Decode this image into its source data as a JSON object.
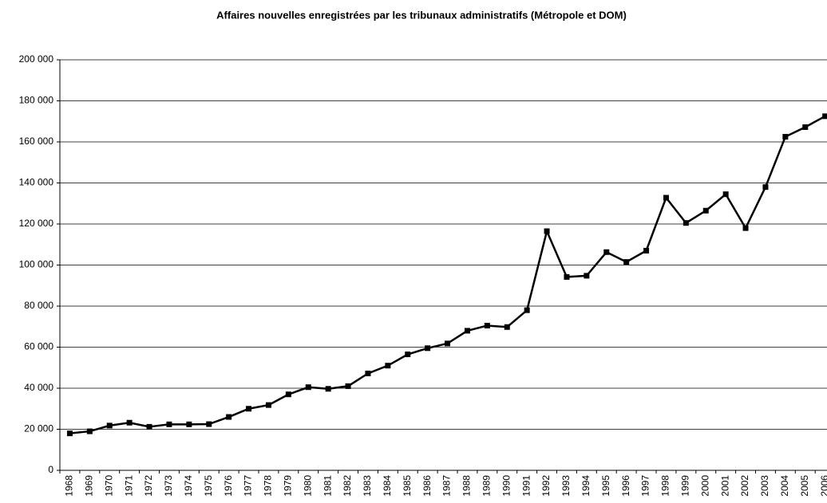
{
  "chart_data": {
    "type": "line",
    "title": "Affaires nouvelles enregistrées par les tribunaux administratifs (Métropole et DOM)",
    "categories": [
      "1968",
      "1969",
      "1970",
      "1971",
      "1972",
      "1973",
      "1974",
      "1975",
      "1976",
      "1977",
      "1978",
      "1979",
      "1980",
      "1981",
      "1982",
      "1983",
      "1984",
      "1985",
      "1986",
      "1987",
      "1988",
      "1989",
      "1990",
      "1991",
      "1992",
      "1993",
      "1994",
      "1995",
      "1996",
      "1997",
      "1998",
      "1999",
      "2000",
      "2001",
      "2002",
      "2003",
      "2004",
      "2005",
      "2006"
    ],
    "series": [
      {
        "color": "#000000",
        "values": [
          18000,
          19000,
          21800,
          23200,
          21200,
          22400,
          22400,
          22500,
          26000,
          30000,
          31800,
          37000,
          40500,
          39700,
          41000,
          47200,
          51000,
          56500,
          59500,
          61800,
          68000,
          70500,
          69800,
          78000,
          116500,
          94200,
          94800,
          106300,
          101500,
          107000,
          132800,
          120500,
          126500,
          134500,
          118000,
          138000,
          162500,
          167200,
          172500
        ]
      }
    ],
    "ylim": [
      0,
      200000
    ],
    "yticks": [
      0,
      {
        "value": 20000,
        "label": "20 000"
      },
      {
        "value": 40000,
        "label": "40 000"
      },
      {
        "value": 60000,
        "label": "60 000"
      },
      {
        "value": 80000,
        "label": "80 000"
      },
      {
        "value": 100000,
        "label": "100 000"
      },
      {
        "value": 120000,
        "label": "120 000"
      },
      {
        "value": 140000,
        "label": "140 000"
      },
      {
        "value": 160000,
        "label": "160 000"
      },
      {
        "value": 180000,
        "label": "180 000"
      },
      {
        "value": 200000,
        "label": "200 000"
      }
    ],
    "grid": true
  }
}
